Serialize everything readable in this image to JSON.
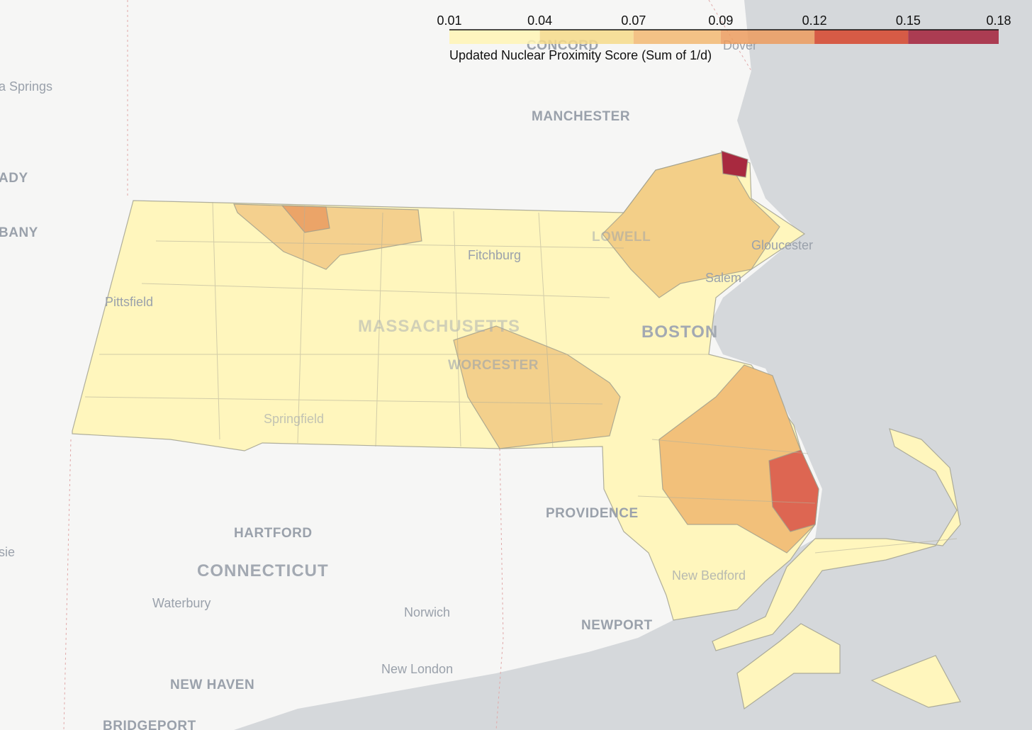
{
  "colorbar": {
    "title": "Updated Nuclear Proximity Score (Sum of 1/d)",
    "range": [
      0.01,
      0.18
    ],
    "ticks": [
      0.01,
      {
        "value": 0.038,
        "label": "0.04"
      },
      {
        "value": 0.067,
        "label": "0.07"
      },
      {
        "value": 0.094,
        "label": "0.09"
      },
      {
        "value": 0.123,
        "label": "0.12"
      },
      {
        "value": 0.152,
        "label": "0.15"
      },
      0.18
    ],
    "colors": [
      "#fff4b5",
      "#f6da8a",
      "#f2b872",
      "#ec9c5e",
      "#d6452c",
      "#a3213a"
    ]
  },
  "places": [
    "a Springs",
    "ADY",
    "BANY",
    "CONCORD",
    "Dover",
    "MANCHESTER",
    "LOWELL",
    "Gloucester",
    "Salem",
    "Fitchburg",
    "Pittsfield",
    "MASSACHUSETTS",
    "BOSTON",
    "WORCESTER",
    "Springfield",
    "PROVIDENCE",
    "HARTFORD",
    "CONNECTICUT",
    "sie",
    "Waterbury",
    "Norwich",
    "NEWPORT",
    "New Bedford",
    "New London",
    "NEW HAVEN",
    "BRIDGEPORT"
  ]
}
